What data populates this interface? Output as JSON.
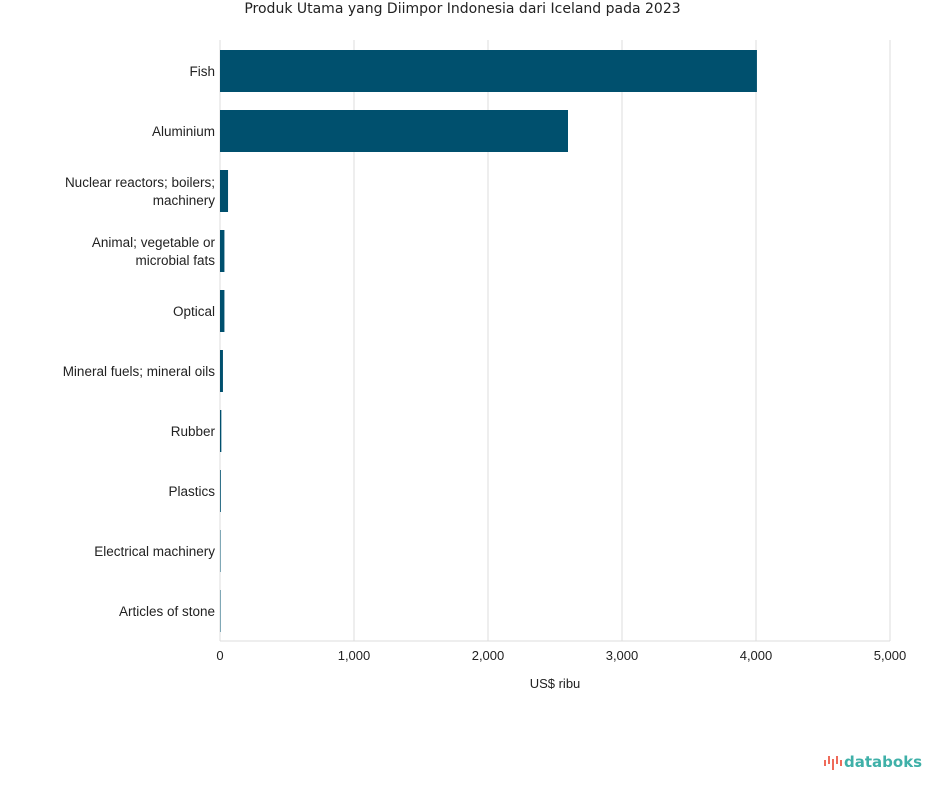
{
  "chart_data": {
    "type": "bar",
    "orientation": "horizontal",
    "title": "Produk Utama yang Diimpor Indonesia dari Iceland pada 2023",
    "xlabel": "US$ ribu",
    "ylabel": "",
    "xlim": [
      0,
      5000
    ],
    "xticks": [
      0,
      1000,
      2000,
      3000,
      4000,
      5000
    ],
    "xtick_labels": [
      "0",
      "1,000",
      "2,000",
      "3,000",
      "4,000",
      "5,000"
    ],
    "grid": true,
    "categories": [
      [
        "Fish"
      ],
      [
        "Aluminium"
      ],
      [
        "Nuclear reactors; boilers;",
        "machinery"
      ],
      [
        "Animal; vegetable or",
        "microbial fats"
      ],
      [
        "Optical"
      ],
      [
        "Mineral fuels; mineral oils"
      ],
      [
        "Rubber"
      ],
      [
        "Plastics"
      ],
      [
        "Electrical machinery"
      ],
      [
        "Articles of stone"
      ]
    ],
    "values": [
      4007,
      2597,
      60,
      33,
      33,
      22,
      10,
      6,
      3,
      0.5
    ],
    "bar_color": "#00506e"
  },
  "branding": {
    "logo_text": "databoks",
    "logo_color": "#3fb0a8",
    "logo_icon_color": "#ef6b5a"
  }
}
